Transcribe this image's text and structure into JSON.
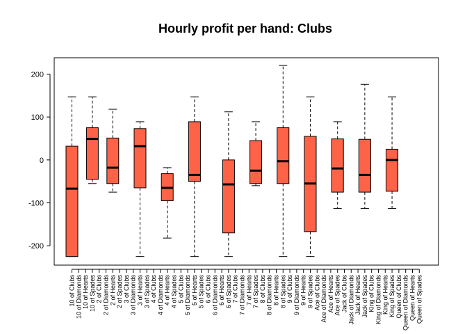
{
  "chart_data": {
    "type": "boxplot",
    "title": "Hourly profit per hand: Clubs",
    "xlabel": "",
    "ylabel": "",
    "ylim": [
      -245,
      238
    ],
    "yticks": [
      -200,
      -100,
      0,
      100,
      200
    ],
    "box_color": "#FF6347",
    "categories": [
      "10 of Clubs",
      "10 of Diamonds",
      "10 of Hearts",
      "10 of Spades",
      "2 of Clubs",
      "2 of Diamonds",
      "2 of Hearts",
      "2 of Spades",
      "3 of Clubs",
      "3 of Diamonds",
      "3 of Hearts",
      "3 of Spades",
      "4 of Clubs",
      "4 of Diamonds",
      "4 of Hearts",
      "4 of Spades",
      "5 of Clubs",
      "5 of Diamonds",
      "5 of Hearts",
      "5 of Spades",
      "6 of Clubs",
      "6 of Diamonds",
      "6 of Hearts",
      "6 of Spades",
      "7 of Clubs",
      "7 of Diamonds",
      "7 of Hearts",
      "7 of Spades",
      "8 of Clubs",
      "8 of Diamonds",
      "8 of Hearts",
      "8 of Spades",
      "9 of Clubs",
      "9 of Diamonds",
      "9 of Hearts",
      "9 of Spades",
      "Ace of Clubs",
      "Ace of Diamonds",
      "Ace of Hearts",
      "Ace of Spades",
      "Jack of Clubs",
      "Jack of Diamonds",
      "Jack of Hearts",
      "Jack of Spades",
      "King of Clubs",
      "King of Diamonds",
      "King of Hearts",
      "King of Spades",
      "Queen of Clubs",
      "Queen of Diamonds",
      "Queen of Hearts",
      "Queen of Spades"
    ],
    "boxes": [
      {
        "category": "10 of Clubs",
        "whisker_low": -225,
        "q1": -225,
        "median": -67,
        "q3": 32,
        "whisker_high": 147
      },
      {
        "category": "10 of Spades",
        "whisker_low": -55,
        "q1": -45,
        "median": 49,
        "q3": 75,
        "whisker_high": 147
      },
      {
        "category": "2 of Hearts",
        "whisker_low": -75,
        "q1": -55,
        "median": -18,
        "q3": 51,
        "whisker_high": 118
      },
      {
        "category": "3 of Hearts",
        "whisker_low": -225,
        "q1": -65,
        "median": 32,
        "q3": 73,
        "whisker_high": 89
      },
      {
        "category": "4 of Hearts",
        "whisker_low": -182,
        "q1": -95,
        "median": -65,
        "q3": -32,
        "whisker_high": -18
      },
      {
        "category": "5 of Hearts",
        "whisker_low": -225,
        "q1": -50,
        "median": -35,
        "q3": 89,
        "whisker_high": 147
      },
      {
        "category": "6 of Spades",
        "whisker_low": -225,
        "q1": -170,
        "median": -57,
        "q3": 0,
        "whisker_high": 112
      },
      {
        "category": "7 of Spades",
        "whisker_low": -60,
        "q1": -55,
        "median": -25,
        "q3": 45,
        "whisker_high": 89
      },
      {
        "category": "8 of Spades",
        "whisker_low": -225,
        "q1": -55,
        "median": -3,
        "q3": 75,
        "whisker_high": 220
      },
      {
        "category": "9 of Spades",
        "whisker_low": -225,
        "q1": -167,
        "median": -55,
        "q3": 55,
        "whisker_high": 147
      },
      {
        "category": "Ace of Spades",
        "whisker_low": -113,
        "q1": -75,
        "median": -20,
        "q3": 49,
        "whisker_high": 89
      },
      {
        "category": "Jack of Spades",
        "whisker_low": -113,
        "q1": -75,
        "median": -35,
        "q3": 48,
        "whisker_high": 176
      },
      {
        "category": "King of Spades",
        "whisker_low": -113,
        "q1": -73,
        "median": 0,
        "q3": 25,
        "whisker_high": 147
      }
    ]
  }
}
